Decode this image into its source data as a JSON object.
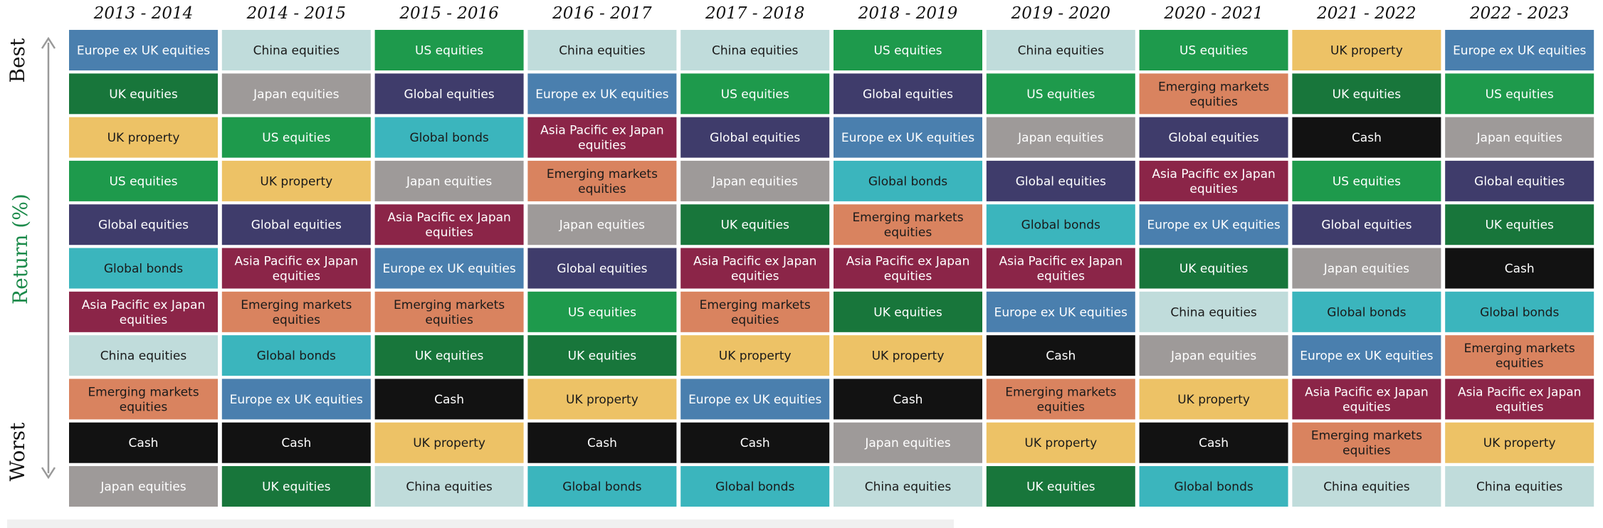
{
  "axis": {
    "best_label": "Best",
    "worst_label": "Worst",
    "return_label": "Return (%)"
  },
  "legend_colors": {
    "Europe ex UK equities": "#4a7fae",
    "China equities": "#c0dcdb",
    "US equities": "#1e9a4c",
    "UK property": "#edc266",
    "UK equities": "#18763b",
    "Japan equities": "#9e9a99",
    "Global equities": "#3f3c6b",
    "Global bonds": "#3bb5bd",
    "Asia Pacific ex Japan equities": "#8b2548",
    "Emerging markets equities": "#d9835f",
    "Cash": "#121212"
  },
  "text_colors": {
    "China equities": "#1a1a1a",
    "UK property": "#1a1a1a",
    "Global bonds": "#1a1a1a",
    "Emerging markets equities": "#1a1a1a"
  },
  "chart_data": {
    "type": "table",
    "title": "",
    "row_order": "best to worst return",
    "years": [
      "2013 - 2014",
      "2014 - 2015",
      "2015 - 2016",
      "2016 - 2017",
      "2017 - 2018",
      "2018 - 2019",
      "2019 - 2020",
      "2020 - 2021",
      "2021 - 2022",
      "2022 - 2023"
    ],
    "rankings": [
      [
        "Europe ex UK equities",
        "UK equities",
        "UK property",
        "US equities",
        "Global equities",
        "Global bonds",
        "Asia Pacific ex Japan equities",
        "China equities",
        "Emerging markets equities",
        "Cash",
        "Japan equities"
      ],
      [
        "China equities",
        "Japan equities",
        "US equities",
        "UK property",
        "Global equities",
        "Asia Pacific ex Japan equities",
        "Emerging markets equities",
        "Global bonds",
        "Europe ex UK equities",
        "Cash",
        "UK equities"
      ],
      [
        "US equities",
        "Global equities",
        "Global bonds",
        "Japan equities",
        "Asia Pacific ex Japan equities",
        "Europe ex UK equities",
        "Emerging markets equities",
        "UK equities",
        "Cash",
        "UK property",
        "China equities"
      ],
      [
        "China equities",
        "Europe ex UK equities",
        "Asia Pacific ex Japan equities",
        "Emerging markets equities",
        "Japan equities",
        "Global equities",
        "US equities",
        "UK equities",
        "UK property",
        "Cash",
        "Global bonds"
      ],
      [
        "China equities",
        "US equities",
        "Global equities",
        "Japan equities",
        "UK equities",
        "Asia Pacific ex Japan equities",
        "Emerging markets equities",
        "UK property",
        "Europe ex UK equities",
        "Cash",
        "Global bonds"
      ],
      [
        "US equities",
        "Global equities",
        "Europe ex UK equities",
        "Global bonds",
        "Emerging markets equities",
        "Asia Pacific ex Japan equities",
        "UK equities",
        "UK property",
        "Cash",
        "Japan equities",
        "China equities"
      ],
      [
        "China equities",
        "US equities",
        "Japan equities",
        "Global equities",
        "Global bonds",
        "Asia Pacific ex Japan equities",
        "Europe ex UK equities",
        "Cash",
        "Emerging markets equities",
        "UK property",
        "UK equities"
      ],
      [
        "US equities",
        "Emerging markets equities",
        "Global equities",
        "Asia Pacific ex Japan equities",
        "Europe ex UK equities",
        "UK equities",
        "China equities",
        "Japan equities",
        "UK property",
        "Cash",
        "Global bonds"
      ],
      [
        "UK property",
        "UK equities",
        "Cash",
        "US equities",
        "Global equities",
        "Japan equities",
        "Global bonds",
        "Europe ex UK equities",
        "Asia Pacific ex Japan equities",
        "Emerging markets equities",
        "China equities"
      ],
      [
        "Europe ex UK equities",
        "US equities",
        "Japan equities",
        "Global equities",
        "UK equities",
        "Cash",
        "Global bonds",
        "Emerging markets equities",
        "Asia Pacific ex Japan equities",
        "UK property",
        "China equities"
      ]
    ]
  }
}
